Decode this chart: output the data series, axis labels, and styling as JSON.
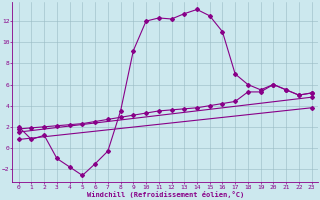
{
  "xlabel": "Windchill (Refroidissement éolien,°C)",
  "bg_color": "#cce8ee",
  "line_color": "#880088",
  "grid_color": "#99bbc4",
  "xlim": [
    -0.5,
    23.5
  ],
  "ylim": [
    -3.2,
    13.8
  ],
  "xticks": [
    0,
    1,
    2,
    3,
    4,
    5,
    6,
    7,
    8,
    9,
    10,
    11,
    12,
    13,
    14,
    15,
    16,
    17,
    18,
    19,
    20,
    21,
    22,
    23
  ],
  "yticks": [
    -2,
    0,
    2,
    4,
    6,
    8,
    10,
    12
  ],
  "curve_x": [
    0,
    1,
    2,
    3,
    4,
    5,
    6,
    7,
    8,
    9,
    10,
    11,
    12,
    13,
    14,
    15,
    16,
    17,
    18,
    19,
    20,
    21,
    22,
    23
  ],
  "curve_y": [
    2.0,
    0.8,
    1.2,
    -1.0,
    -1.8,
    -2.6,
    -1.5,
    -0.3,
    3.5,
    9.2,
    12.0,
    12.3,
    12.2,
    12.7,
    13.1,
    12.5,
    11.0,
    7.0,
    6.0,
    5.5,
    6.0,
    5.5,
    5.0,
    5.2
  ],
  "line2_x": [
    0,
    1,
    2,
    3,
    4,
    5,
    6,
    7,
    8,
    9,
    10,
    11,
    12,
    13,
    14,
    15,
    16,
    17,
    18,
    19,
    20,
    21,
    22,
    23
  ],
  "line2_y": [
    1.8,
    1.9,
    2.0,
    2.1,
    2.2,
    2.3,
    2.5,
    2.7,
    2.9,
    3.1,
    3.3,
    3.5,
    3.6,
    3.7,
    3.8,
    4.0,
    4.2,
    4.4,
    5.3,
    5.3,
    6.0,
    5.5,
    5.0,
    5.2
  ],
  "line3_x": [
    0,
    23
  ],
  "line3_y": [
    1.5,
    4.8
  ],
  "line4_x": [
    0,
    23
  ],
  "line4_y": [
    0.8,
    3.8
  ]
}
